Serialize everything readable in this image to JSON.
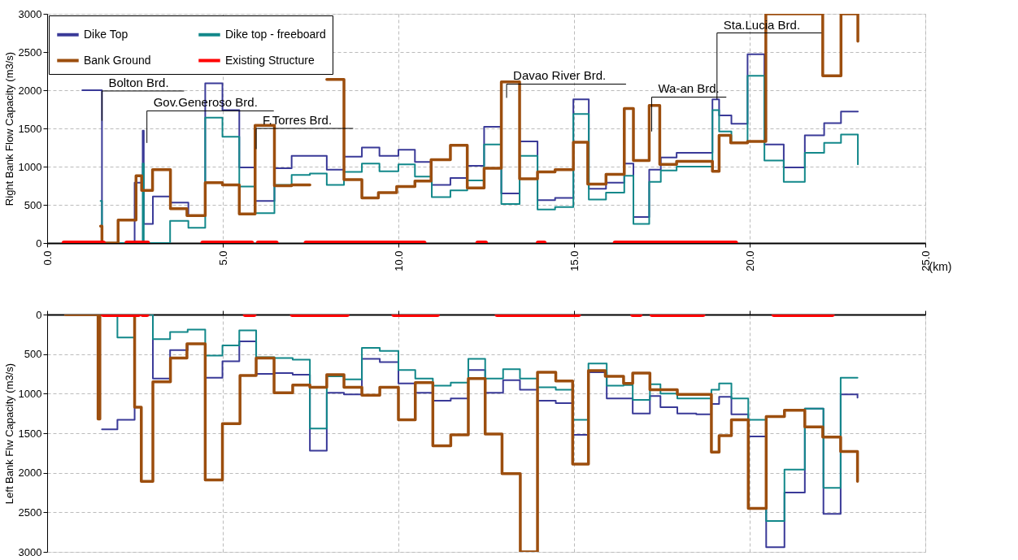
{
  "chart_data": [
    {
      "type": "step",
      "ylabel": "Right Bank Flow Capacity (m3/s)",
      "xlabel": "(km)",
      "xlim": [
        0,
        25
      ],
      "xticks": [
        {
          "value": 0,
          "label": "0.0"
        },
        {
          "value": 5,
          "label": "5.0"
        },
        {
          "value": 10,
          "label": "10.0"
        },
        {
          "value": 15,
          "label": "15.0"
        },
        {
          "value": 20,
          "label": "20.0"
        },
        {
          "value": 25,
          "label": "25.0"
        }
      ],
      "ylim": [
        0,
        3000
      ],
      "yticks": [
        0,
        500,
        {
          "value": 1000,
          "label": "1000"
        },
        {
          "value": 1500,
          "label": "1500"
        },
        {
          "value": 2000,
          "label": "2000"
        },
        {
          "value": 2500,
          "label": "2500"
        },
        {
          "value": 3000,
          "label": "3000"
        }
      ],
      "grid": true,
      "legend": "top left",
      "series": [
        {
          "name": "Dike Top",
          "color": "#3a3a98",
          "x": [
            1.0,
            1.56,
            2.49,
            2.72,
            2.75,
            3.01,
            3.5,
            4.02,
            4.5,
            4.99,
            5.47,
            5.92,
            6.47,
            6.96,
            7.48,
            7.96,
            8.45,
            8.96,
            9.46,
            10.0,
            10.47,
            10.95,
            11.48,
            11.96,
            12.44,
            12.93,
            13.45,
            13.96,
            14.46,
            14.98,
            15.42,
            15.91,
            16.43,
            16.69,
            17.14,
            17.47,
            17.92,
            18.94,
            19.13,
            19.48,
            19.94,
            20.42,
            20.97,
            21.57,
            22.12,
            22.6,
            23.08
          ],
          "values": [
            2000,
            0,
            790,
            1470,
            250,
            610,
            530,
            350,
            2090,
            1740,
            990,
            550,
            980,
            1140,
            1140,
            960,
            1130,
            1250,
            1140,
            1220,
            1060,
            760,
            850,
            1010,
            1520,
            650,
            1330,
            560,
            590,
            1880,
            710,
            790,
            1040,
            340,
            960,
            1120,
            1180,
            1880,
            1670,
            1560,
            2470,
            1290,
            990,
            1410,
            1570,
            1720,
            1720
          ]
        },
        {
          "name": "Dike top - freeboard",
          "color": "#12888a",
          "x": [
            1.52,
            1.56,
            2.72,
            2.75,
            3.5,
            4.02,
            4.5,
            4.99,
            5.47,
            5.92,
            6.47,
            6.96,
            7.48,
            7.96,
            8.45,
            8.96,
            9.46,
            10.0,
            10.47,
            10.95,
            11.48,
            11.96,
            12.44,
            12.93,
            13.45,
            13.96,
            14.46,
            14.98,
            15.42,
            15.91,
            16.43,
            16.69,
            17.14,
            17.47,
            17.92,
            18.94,
            19.13,
            19.48,
            19.94,
            20.42,
            20.97,
            21.57,
            22.12,
            22.6,
            23.08
          ],
          "values": [
            550,
            0,
            1040,
            0,
            290,
            200,
            1640,
            1390,
            740,
            390,
            760,
            890,
            910,
            760,
            930,
            1040,
            940,
            1030,
            870,
            600,
            690,
            820,
            1290,
            510,
            1140,
            440,
            470,
            1690,
            570,
            660,
            880,
            250,
            800,
            950,
            1000,
            1740,
            1460,
            1320,
            2190,
            1080,
            800,
            1180,
            1310,
            1420,
            1030
          ]
        },
        {
          "name": "Bank Ground",
          "color": "#9c4e0e",
          "x": [
            1.52,
            1.56,
            2.02,
            2.53,
            2.69,
            3.0,
            3.51,
            3.98,
            4.5,
            4.99,
            5.47,
            5.92,
            6.47,
            6.96,
            7.48,
            7.96,
            8.45,
            8.96,
            9.43,
            9.95,
            10.47,
            10.93,
            11.48,
            11.96,
            12.44,
            12.93,
            13.45,
            13.96,
            14.46,
            14.98,
            15.39,
            15.91,
            16.43,
            16.69,
            17.14,
            17.44,
            17.92,
            18.94,
            19.13,
            19.46,
            19.94,
            20.46,
            22.08,
            22.6,
            23.08
          ],
          "values": [
            220,
            0,
            300,
            880,
            690,
            960,
            450,
            360,
            790,
            760,
            380,
            1540,
            750,
            760,
            null,
            2140,
            830,
            590,
            660,
            740,
            810,
            1090,
            1280,
            720,
            980,
            2110,
            840,
            930,
            960,
            1320,
            770,
            900,
            1760,
            1080,
            1800,
            1030,
            1070,
            940,
            1410,
            1310,
            1330,
            3000,
            2190,
            3000,
            2640
          ]
        },
        {
          "name": "Existing Structure",
          "type": "line",
          "color": "#ff0000",
          "x": [
            0.48,
            1.6,
            null,
            2.27,
            2.86,
            null,
            4.43,
            5.19,
            null,
            5.24,
            5.82,
            null,
            6.01,
            6.52,
            null,
            7.37,
            10.73,
            null,
            12.26,
            12.48,
            null,
            13.98,
            14.15,
            null,
            16.17,
            19.6
          ],
          "values": [
            0,
            0,
            null,
            0,
            0,
            null,
            0,
            0,
            null,
            0,
            0,
            null,
            0,
            0,
            null,
            0,
            0,
            null,
            0,
            0,
            null,
            0,
            0,
            null,
            0,
            0
          ]
        }
      ],
      "annotations": [
        {
          "text": "Bolton Brd.",
          "x": 1.56,
          "y": 1600
        },
        {
          "text": "Gov.Generoso Brd.",
          "x": 2.84,
          "y": 1310
        },
        {
          "text": "F.Torres Brd.",
          "x": 5.95,
          "y": 1230
        },
        "Davao River Brd.",
        {
          "text": "Wa-an Brd.",
          "x": 17.21,
          "y": 1460
        },
        {
          "text": "Sta.Lucia Brd.",
          "x": 19.07,
          "y": 1880
        }
      ]
    },
    {
      "type": "step",
      "ylabel": "Left Bank Flw Capacity (m3/s)",
      "xlim": [
        0,
        25
      ],
      "xticks": [
        0,
        5,
        10,
        15,
        20,
        25
      ],
      "ylim": [
        3000,
        0
      ],
      "yticks": [
        0,
        500,
        {
          "value": 1000,
          "label": "1000"
        },
        {
          "value": 1500,
          "label": "1500"
        },
        {
          "value": 2000,
          "label": "2000"
        },
        {
          "value": 2500,
          "label": "2500"
        },
        {
          "value": 3000,
          "label": "3000"
        }
      ],
      "grid": true,
      "tick_labels": "y",
      "series": [
        {
          "color": "#3a3a98",
          "x": [
            1.56,
            2.0,
            2.49,
            3.01,
            3.5,
            4.0,
            4.5,
            4.99,
            5.47,
            5.95,
            6.47,
            6.99,
            7.48,
            7.96,
            8.45,
            8.96,
            9.47,
            10.0,
            10.48,
            10.98,
            11.49,
            11.99,
            12.47,
            12.98,
            13.46,
            13.96,
            14.48,
            14.96,
            15.41,
            15.93,
            16.41,
            16.67,
            17.16,
            17.46,
            17.94,
            18.48,
            18.91,
            19.13,
            19.48,
            19.96,
            20.47,
            20.99,
            21.57,
            22.1,
            22.59,
            23.07
          ],
          "values": [
            1450,
            1330,
            0,
            810,
            450,
            370,
            800,
            590,
            340,
            750,
            740,
            760,
            1720,
            990,
            1010,
            560,
            600,
            870,
            990,
            1090,
            1060,
            700,
            990,
            830,
            950,
            1090,
            1120,
            1520,
            730,
            1060,
            1060,
            1250,
            1030,
            1170,
            1250,
            1260,
            1130,
            1040,
            1260,
            1540,
            2940,
            2250,
            1190,
            2520,
            1010,
            1050
          ]
        },
        {
          "color": "#12888a",
          "x": [
            1.56,
            2.0,
            2.49,
            3.01,
            3.5,
            4.0,
            4.5,
            4.99,
            5.47,
            5.95,
            6.47,
            6.99,
            7.48,
            7.96,
            8.45,
            8.96,
            9.47,
            10.0,
            10.48,
            10.98,
            11.49,
            11.99,
            12.47,
            12.98,
            13.46,
            13.96,
            14.48,
            14.96,
            15.41,
            15.93,
            16.41,
            16.67,
            17.16,
            17.46,
            17.94,
            18.91,
            19.13,
            19.48,
            19.96,
            20.47,
            20.99,
            21.57,
            22.1,
            22.59,
            23.07
          ],
          "values": [
            0,
            290,
            0,
            310,
            220,
            190,
            520,
            390,
            200,
            540,
            550,
            570,
            1440,
            780,
            820,
            420,
            460,
            700,
            810,
            900,
            860,
            560,
            810,
            690,
            810,
            920,
            950,
            1330,
            620,
            900,
            890,
            1080,
            880,
            1000,
            1060,
            950,
            870,
            1060,
            1330,
            2610,
            1960,
            1190,
            2190,
            800,
            800
          ]
        },
        {
          "color": "#9c4e0e",
          "x": [
            0.52,
            1.45,
            1.5,
            2.49,
            2.68,
            3.01,
            3.51,
            3.98,
            4.5,
            4.99,
            5.49,
            5.95,
            6.46,
            6.99,
            7.48,
            7.96,
            8.45,
            8.96,
            9.47,
            10.0,
            10.48,
            10.98,
            11.49,
            11.99,
            12.47,
            12.95,
            13.47,
            13.96,
            14.48,
            14.96,
            15.41,
            15.89,
            16.41,
            16.67,
            17.16,
            17.94,
            18.91,
            19.13,
            19.48,
            19.96,
            20.47,
            20.99,
            21.57,
            22.08,
            22.59,
            23.07
          ],
          "values": [
            0,
            1320,
            0,
            1170,
            2110,
            850,
            550,
            370,
            2090,
            1380,
            770,
            550,
            990,
            890,
            920,
            760,
            920,
            1020,
            920,
            1330,
            860,
            1660,
            1520,
            810,
            1510,
            2010,
            3000,
            730,
            840,
            1890,
            710,
            780,
            870,
            740,
            950,
            1010,
            1740,
            1530,
            1330,
            2450,
            1290,
            1210,
            1420,
            1550,
            1730,
            2110
          ]
        },
        {
          "type": "line",
          "color": "#ff0000",
          "x": [
            1.6,
            2.6,
            null,
            2.72,
            2.84,
            null,
            5.64,
            5.89,
            null,
            6.98,
            8.54,
            null,
            9.87,
            11.11,
            null,
            12.81,
            15.13,
            null,
            16.67,
            16.88,
            null,
            17.22,
            18.67,
            null,
            20.69,
            22.35
          ],
          "values": [
            0,
            0,
            null,
            0,
            0,
            null,
            0,
            0,
            null,
            0,
            0,
            null,
            0,
            0,
            null,
            0,
            0,
            null,
            0,
            0,
            null,
            0,
            0,
            null,
            0,
            0
          ]
        }
      ]
    }
  ]
}
